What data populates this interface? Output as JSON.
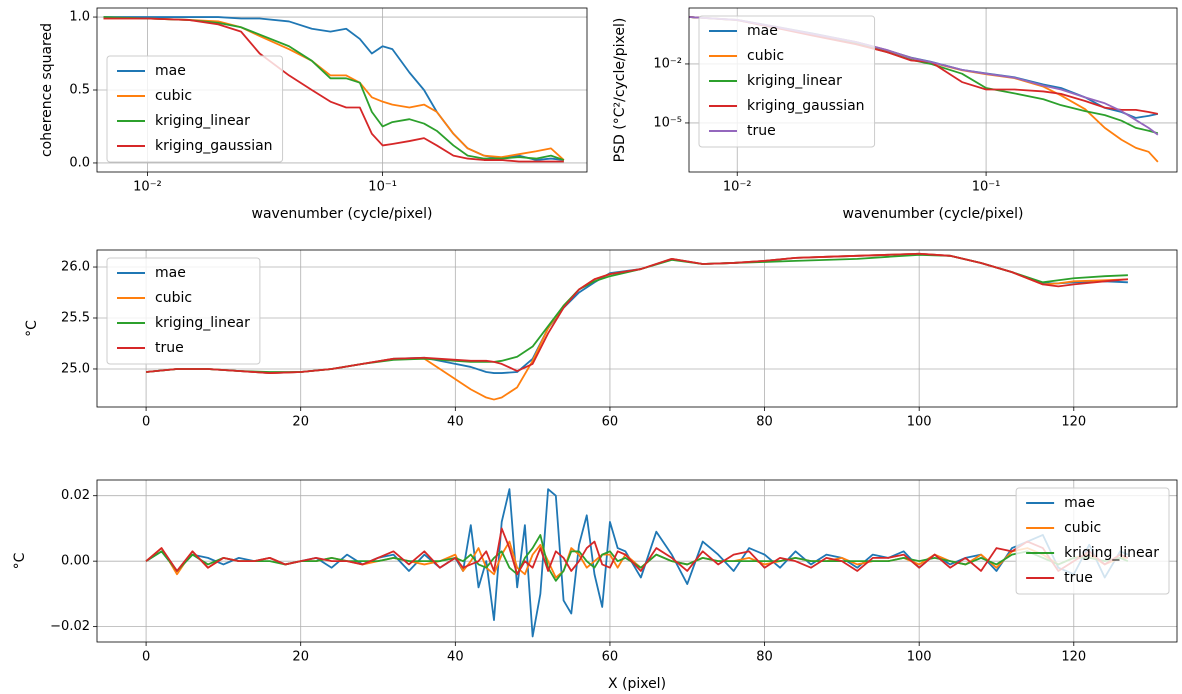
{
  "chart_data": [
    {
      "type": "line",
      "xlog": true,
      "grid": true,
      "legend": "lower left",
      "xlabel": "wavenumber (cycle/pixel)",
      "ylabel": "coherence squared",
      "xlim": [
        0.0061,
        0.74
      ],
      "ylim": [
        -0.062,
        1.062
      ],
      "xticks": [
        {
          "value": 0.01,
          "label": "10⁻²"
        },
        {
          "value": 0.1,
          "label": "10⁻¹"
        }
      ],
      "yticks": [
        {
          "value": 0,
          "label": "0.0"
        },
        0.5,
        {
          "value": 1,
          "label": "1.0"
        }
      ],
      "x": [
        0.0065,
        0.01,
        0.015,
        0.02,
        0.025,
        0.03,
        0.04,
        0.05,
        0.06,
        0.07,
        0.08,
        0.09,
        0.1,
        0.11,
        0.13,
        0.15,
        0.17,
        0.2,
        0.23,
        0.27,
        0.32,
        0.38,
        0.45,
        0.52,
        0.59
      ],
      "series": [
        {
          "name": "mae",
          "color": "#1f77b4",
          "values": [
            1,
            1,
            1,
            1,
            0.99,
            0.99,
            0.97,
            0.92,
            0.9,
            0.92,
            0.85,
            0.75,
            0.8,
            0.78,
            0.62,
            0.5,
            0.35,
            0.2,
            0.1,
            0.05,
            0.03,
            0.05,
            0.02,
            0.03,
            0.02
          ]
        },
        {
          "name": "cubic",
          "color": "#ff7f0e",
          "values": [
            0.99,
            0.99,
            0.98,
            0.97,
            0.93,
            0.87,
            0.78,
            0.7,
            0.6,
            0.6,
            0.55,
            0.45,
            0.42,
            0.4,
            0.38,
            0.4,
            0.35,
            0.2,
            0.1,
            0.05,
            0.04,
            0.06,
            0.08,
            0.1,
            0.02
          ]
        },
        {
          "name": "kriging_linear",
          "color": "#2ca02c",
          "values": [
            1,
            0.99,
            0.98,
            0.96,
            0.93,
            0.88,
            0.8,
            0.7,
            0.58,
            0.58,
            0.55,
            0.35,
            0.25,
            0.28,
            0.3,
            0.27,
            0.22,
            0.12,
            0.05,
            0.03,
            0.03,
            0.04,
            0.03,
            0.05,
            0.02
          ]
        },
        {
          "name": "kriging_gaussian",
          "color": "#d62728",
          "values": [
            0.99,
            0.99,
            0.98,
            0.95,
            0.9,
            0.75,
            0.6,
            0.5,
            0.42,
            0.38,
            0.38,
            0.2,
            0.12,
            0.13,
            0.15,
            0.17,
            0.12,
            0.05,
            0.03,
            0.02,
            0.02,
            0.01,
            0.01,
            0.01,
            0.01
          ]
        }
      ]
    },
    {
      "type": "line",
      "xlog": true,
      "ylog": true,
      "grid": true,
      "legend": "upper left",
      "xlabel": "wavenumber (cycle/pixel)",
      "ylabel": "PSD (°C²/cycle/pixel)",
      "xlim": [
        0.0064,
        0.585
      ],
      "ylim": [
        3.2e-08,
        7
      ],
      "xticks": [
        {
          "value": 0.01,
          "label": "10⁻²"
        },
        {
          "value": 0.1,
          "label": "10⁻¹"
        }
      ],
      "yticks": [
        {
          "value": 0.01,
          "label": "10⁻²"
        },
        {
          "value": 1e-05,
          "label": "10⁻⁵"
        }
      ],
      "x": [
        0.0064,
        0.01,
        0.015,
        0.02,
        0.03,
        0.04,
        0.05,
        0.06,
        0.08,
        0.1,
        0.13,
        0.17,
        0.2,
        0.25,
        0.3,
        0.35,
        0.4,
        0.45,
        0.49
      ],
      "series": [
        {
          "name": "mae",
          "color": "#1f77b4",
          "values": [
            2.45,
            1.74,
            0.7,
            0.36,
            0.13,
            0.05,
            0.021,
            0.013,
            0.005,
            0.0033,
            0.0021,
            0.0009,
            0.0006,
            0.0002,
            5.8e-05,
            3.6e-05,
            1.8e-05,
            2.3e-05,
            2.9e-05
          ]
        },
        {
          "name": "cubic",
          "color": "#ff7f0e",
          "values": [
            2.45,
            1.74,
            0.68,
            0.34,
            0.13,
            0.05,
            0.02,
            0.012,
            0.0048,
            0.003,
            0.0019,
            0.0007,
            0.00025,
            5e-05,
            5.6e-06,
            1.4e-06,
            5.4e-07,
            3.4e-07,
            1.05e-07
          ]
        },
        {
          "name": "kriging_linear",
          "color": "#2ca02c",
          "values": [
            2.45,
            1.7,
            0.65,
            0.3,
            0.11,
            0.04,
            0.016,
            0.01,
            0.0032,
            0.0006,
            0.00032,
            0.00016,
            8e-05,
            4e-05,
            2.5e-05,
            1.3e-05,
            5.6e-06,
            4e-06,
            3e-06
          ]
        },
        {
          "name": "kriging_gaussian",
          "color": "#d62728",
          "values": [
            2.45,
            1.7,
            0.6,
            0.28,
            0.1,
            0.04,
            0.015,
            0.0126,
            0.0012,
            0.0005,
            0.0005,
            0.0004,
            0.0003,
            0.00013,
            6e-05,
            4.6e-05,
            4.6e-05,
            3.6e-05,
            2.9e-05
          ]
        },
        {
          "name": "true",
          "color": "#9467bd",
          "values": [
            2.45,
            1.74,
            0.68,
            0.34,
            0.13,
            0.051,
            0.02,
            0.0126,
            0.005,
            0.0032,
            0.002,
            0.00079,
            0.0005,
            0.0002,
            0.0001,
            4e-05,
            1.4e-05,
            5.6e-06,
            2.5e-06
          ]
        }
      ]
    },
    {
      "type": "line",
      "grid": true,
      "legend": "upper left",
      "ylabel": "°C",
      "xlim": [
        -6.35,
        133.35
      ],
      "ylim": [
        24.627,
        26.167
      ],
      "xticks": [
        0,
        20,
        40,
        60,
        80,
        100,
        120
      ],
      "yticks": [
        {
          "value": 25,
          "label": "25.0"
        },
        25.5,
        {
          "value": 26,
          "label": "26.0"
        }
      ],
      "x": [
        0,
        4,
        8,
        12,
        16,
        20,
        24,
        28,
        32,
        36,
        40,
        42,
        44,
        45,
        46,
        48,
        50,
        52,
        54,
        56,
        58,
        60,
        64,
        68,
        72,
        76,
        80,
        84,
        88,
        92,
        96,
        100,
        104,
        108,
        112,
        116,
        118,
        120,
        124,
        127
      ],
      "series": [
        {
          "name": "mae",
          "color": "#1f77b4",
          "values": [
            24.97,
            25.0,
            25.0,
            24.98,
            24.96,
            24.97,
            25.0,
            25.05,
            25.1,
            25.11,
            25.05,
            25.02,
            24.97,
            24.96,
            24.96,
            24.97,
            25.1,
            25.4,
            25.6,
            25.75,
            25.85,
            25.94,
            25.98,
            26.08,
            26.03,
            26.04,
            26.06,
            26.09,
            26.1,
            26.11,
            26.12,
            26.13,
            26.11,
            26.04,
            25.95,
            25.84,
            25.84,
            25.85,
            25.86,
            25.85
          ]
        },
        {
          "name": "cubic",
          "color": "#ff7f0e",
          "values": [
            24.97,
            25.0,
            25.0,
            24.98,
            24.96,
            24.97,
            25.0,
            25.05,
            25.1,
            25.1,
            24.9,
            24.8,
            24.72,
            24.7,
            24.72,
            24.82,
            25.08,
            25.4,
            25.62,
            25.78,
            25.88,
            25.93,
            25.98,
            26.08,
            26.03,
            26.04,
            26.06,
            26.09,
            26.1,
            26.11,
            26.12,
            26.13,
            26.11,
            26.04,
            25.95,
            25.83,
            25.84,
            25.86,
            25.87,
            25.88
          ]
        },
        {
          "name": "kriging_linear",
          "color": "#2ca02c",
          "values": [
            24.97,
            25.0,
            25.0,
            24.98,
            24.97,
            24.97,
            25.0,
            25.05,
            25.09,
            25.1,
            25.08,
            25.07,
            25.07,
            25.07,
            25.08,
            25.12,
            25.22,
            25.42,
            25.62,
            25.78,
            25.86,
            25.91,
            25.98,
            26.07,
            26.03,
            26.04,
            26.05,
            26.06,
            26.07,
            26.08,
            26.1,
            26.12,
            26.11,
            26.04,
            25.95,
            25.85,
            25.87,
            25.89,
            25.91,
            25.92
          ]
        },
        {
          "name": "true",
          "color": "#d62728",
          "values": [
            24.97,
            25.0,
            25.0,
            24.98,
            24.96,
            24.97,
            25.0,
            25.05,
            25.1,
            25.11,
            25.09,
            25.08,
            25.08,
            25.07,
            25.05,
            24.98,
            25.05,
            25.35,
            25.6,
            25.78,
            25.88,
            25.93,
            25.98,
            26.08,
            26.03,
            26.04,
            26.06,
            26.09,
            26.1,
            26.11,
            26.12,
            26.13,
            26.11,
            26.04,
            25.95,
            25.83,
            25.81,
            25.83,
            25.86,
            25.88
          ]
        }
      ]
    },
    {
      "type": "line",
      "grid": true,
      "legend": "upper right",
      "xlabel": "X (pixel)",
      "ylabel": "°C",
      "xlim": [
        -6.35,
        133.35
      ],
      "ylim": [
        -0.0247,
        0.0248
      ],
      "xticks": [
        0,
        20,
        40,
        60,
        80,
        100,
        120
      ],
      "yticks": [
        {
          "value": -0.02,
          "label": "−0.02"
        },
        {
          "value": 0,
          "label": "0.00"
        },
        0.02
      ],
      "x": [
        0,
        2,
        4,
        6,
        8,
        10,
        12,
        14,
        16,
        18,
        20,
        22,
        24,
        26,
        28,
        30,
        32,
        34,
        36,
        38,
        40,
        41,
        42,
        43,
        44,
        45,
        46,
        47,
        48,
        49,
        50,
        51,
        52,
        53,
        54,
        55,
        56,
        57,
        58,
        59,
        60,
        61,
        62,
        64,
        66,
        68,
        70,
        72,
        74,
        76,
        78,
        80,
        82,
        84,
        86,
        88,
        90,
        92,
        94,
        96,
        98,
        100,
        102,
        104,
        106,
        108,
        110,
        112,
        114,
        116,
        118,
        120,
        122,
        124,
        126,
        127
      ],
      "series": [
        {
          "name": "mae",
          "color": "#1f77b4",
          "values": [
            0,
            0.003,
            -0.003,
            0.002,
            0.001,
            -0.001,
            0.001,
            0,
            0.001,
            -0.001,
            0,
            0.001,
            -0.002,
            0.002,
            -0.001,
            0.001,
            0.002,
            -0.003,
            0.002,
            -0.002,
            0.001,
            -0.003,
            0.011,
            -0.008,
            0,
            -0.018,
            0.012,
            0.022,
            -0.008,
            0.011,
            -0.023,
            -0.01,
            0.022,
            0.02,
            -0.012,
            -0.016,
            0.005,
            0.014,
            -0.004,
            -0.014,
            0.012,
            0.004,
            0.003,
            -0.005,
            0.009,
            0.002,
            -0.007,
            0.006,
            0.002,
            -0.003,
            0.004,
            0.002,
            -0.002,
            0.003,
            -0.001,
            0.002,
            0.001,
            -0.002,
            0.002,
            0.001,
            0.003,
            -0.002,
            0.002,
            -0.001,
            0.001,
            0.002,
            -0.003,
            0.004,
            0.006,
            0.008,
            -0.002,
            -0.004,
            0.005,
            -0.005,
            0.003,
            0.002
          ]
        },
        {
          "name": "cubic",
          "color": "#ff7f0e",
          "values": [
            0,
            0.004,
            -0.004,
            0.003,
            -0.002,
            0.001,
            0,
            0,
            0.001,
            -0.001,
            0,
            0,
            0.001,
            0,
            -0.001,
            0,
            0.001,
            0,
            -0.001,
            0,
            0.002,
            -0.003,
            0,
            0.004,
            -0.002,
            -0.004,
            0.002,
            0.006,
            -0.002,
            -0.004,
            0.002,
            0.005,
            0,
            -0.005,
            -0.003,
            0.004,
            0.002,
            -0.002,
            0,
            0.002,
            0.002,
            -0.002,
            0.002,
            -0.002,
            0.002,
            0,
            -0.001,
            0.001,
            0,
            0,
            0.001,
            -0.001,
            0,
            0.001,
            0,
            0,
            0.001,
            -0.001,
            0,
            0,
            0.001,
            -0.001,
            0.002,
            0,
            -0.001,
            0.002,
            -0.002,
            0.003,
            0.004,
            0.002,
            -0.001,
            0.001,
            0.002,
            -0.001,
            0.001,
            0.001
          ]
        },
        {
          "name": "kriging_linear",
          "color": "#2ca02c",
          "values": [
            0,
            0.003,
            -0.003,
            0.002,
            -0.001,
            0.001,
            0,
            0,
            0,
            -0.001,
            0,
            0,
            0.001,
            0,
            0,
            0,
            0.001,
            0,
            0,
            0,
            0.001,
            0,
            0.002,
            -0.001,
            -0.002,
            0.001,
            0.003,
            -0.002,
            -0.004,
            0.001,
            0.004,
            0.008,
            -0.002,
            -0.006,
            -0.003,
            0.003,
            0.003,
            0,
            -0.002,
            0.002,
            0.003,
            0,
            0.001,
            -0.002,
            0.002,
            0,
            -0.001,
            0.001,
            0,
            0,
            0,
            0,
            0,
            0.001,
            0,
            0,
            0,
            0,
            0,
            0,
            0.001,
            0,
            0.001,
            0,
            -0.001,
            0.001,
            -0.001,
            0.002,
            0.003,
            0.001,
            -0.001,
            0.001,
            0.001,
            0,
            0.001,
            0
          ]
        },
        {
          "name": "true",
          "color": "#d62728",
          "values": [
            0,
            0.004,
            -0.003,
            0.003,
            -0.002,
            0.001,
            0,
            0,
            0.001,
            -0.001,
            0,
            0.001,
            0,
            0,
            -0.001,
            0.001,
            0.003,
            -0.001,
            0.003,
            -0.002,
            0.001,
            -0.002,
            -0.001,
            0,
            0.003,
            -0.003,
            0.01,
            0.004,
            -0.004,
            0,
            -0.002,
            0.004,
            -0.003,
            0.003,
            0.001,
            -0.003,
            0,
            0.004,
            0.006,
            -0.001,
            -0.002,
            0.003,
            0.002,
            -0.003,
            0.004,
            0.001,
            -0.003,
            0.003,
            -0.001,
            0.002,
            0.003,
            -0.002,
            0.001,
            0,
            -0.002,
            0.001,
            0,
            -0.003,
            0.001,
            0.001,
            0.002,
            -0.002,
            0.002,
            -0.002,
            0.001,
            -0.003,
            0.004,
            0.003,
            0.006,
            0.004,
            -0.003,
            0,
            0.003,
            -0.001,
            0.002,
            0.001
          ]
        }
      ]
    }
  ]
}
